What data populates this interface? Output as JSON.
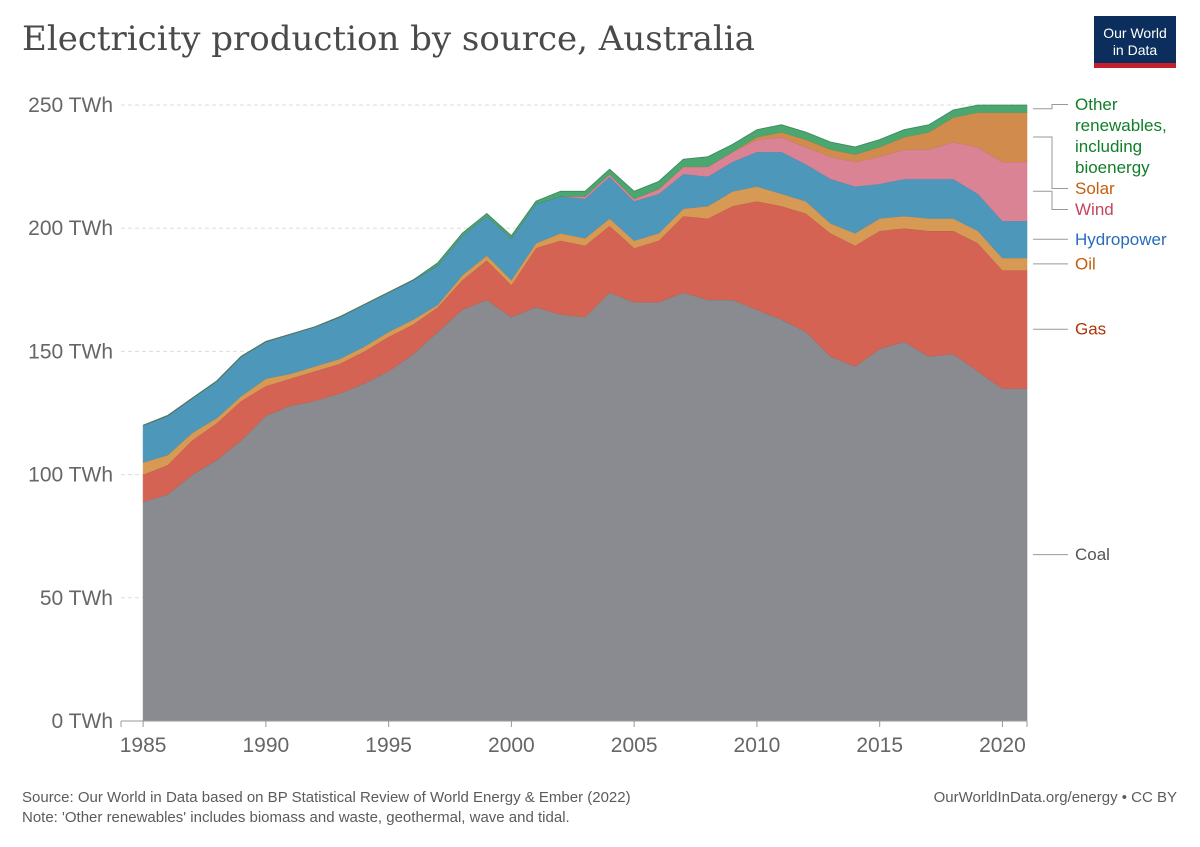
{
  "title": "Electricity production by source, Australia",
  "logo": {
    "line1": "Our World",
    "line2": "in Data",
    "bg": "#0b2e5c",
    "accent": "#c4202b"
  },
  "source_note": "Source: Our World in Data based on BP Statistical Review of World Energy & Ember (2022)",
  "note": "Note: 'Other renewables' includes biomass and waste, geothermal, wave and tidal.",
  "license": "OurWorldInData.org/energy • CC BY",
  "chart_data": {
    "type": "area",
    "stacked": true,
    "x": [
      1985,
      1986,
      1987,
      1988,
      1989,
      1990,
      1991,
      1992,
      1993,
      1994,
      1995,
      1996,
      1997,
      1998,
      1999,
      2000,
      2001,
      2002,
      2003,
      2004,
      2005,
      2006,
      2007,
      2008,
      2009,
      2010,
      2011,
      2012,
      2013,
      2014,
      2015,
      2016,
      2017,
      2018,
      2019,
      2020,
      2021
    ],
    "xlim": [
      1984.1,
      2021
    ],
    "ylim": [
      0,
      250
    ],
    "y_ticks": [
      0,
      50,
      100,
      150,
      200,
      250
    ],
    "y_tick_labels": [
      "0 TWh",
      "50 TWh",
      "100 TWh",
      "150 TWh",
      "200 TWh",
      "250 TWh"
    ],
    "x_ticks": [
      1985,
      1990,
      1995,
      2000,
      2005,
      2010,
      2015,
      2020
    ],
    "x_tick_labels": [
      "1985",
      "1990",
      "1995",
      "2000",
      "2005",
      "2010",
      "2015",
      "2020"
    ],
    "grid": true,
    "legend_placement": "right, labels at series ends",
    "series": [
      {
        "name": "Coal",
        "color": "#898b90",
        "label_color": "#555555",
        "values": [
          89,
          92,
          100,
          106,
          114,
          124,
          128,
          130,
          133,
          137,
          142,
          149,
          158,
          167,
          171,
          164,
          168,
          165,
          164,
          174,
          170,
          170,
          174,
          171,
          171,
          167,
          163,
          158,
          148,
          144,
          151,
          154,
          148,
          149,
          142,
          135,
          135
        ]
      },
      {
        "name": "Gas",
        "color": "#d46353",
        "label_color": "#b13507",
        "values": [
          11,
          12,
          14,
          15,
          16,
          12,
          11,
          12,
          12,
          13,
          14,
          12,
          10,
          12,
          16,
          13,
          24,
          30,
          29,
          27,
          22,
          25,
          31,
          33,
          38,
          44,
          46,
          48,
          50,
          49,
          48,
          46,
          51,
          50,
          52,
          48,
          48
        ]
      },
      {
        "name": "Oil",
        "color": "#d69a55",
        "label_color": "#c15f0d",
        "values": [
          5,
          4,
          3,
          2,
          2,
          3,
          2,
          2,
          2,
          2,
          2,
          2,
          1,
          2,
          2,
          2,
          2,
          3,
          3,
          3,
          3,
          3,
          3,
          5,
          6,
          6,
          5,
          5,
          4,
          5,
          5,
          5,
          5,
          5,
          5,
          5,
          5
        ]
      },
      {
        "name": "Hydropower",
        "color": "#4d97bb",
        "label_color": "#286bbb",
        "values": [
          15,
          16,
          14,
          15,
          16,
          15,
          16,
          16,
          17,
          17,
          16,
          16,
          16,
          16,
          16,
          17,
          16,
          15,
          16,
          17,
          16,
          16,
          14,
          12,
          12,
          14,
          17,
          15,
          18,
          19,
          14,
          15,
          16,
          16,
          15,
          15,
          15
        ]
      },
      {
        "name": "Wind",
        "color": "#d98394",
        "label_color": "#c6445d",
        "values": [
          0,
          0,
          0,
          0,
          0,
          0,
          0,
          0,
          0,
          0,
          0,
          0,
          0,
          0,
          0,
          0,
          0,
          0,
          1,
          1,
          1,
          2,
          3,
          4,
          4,
          5,
          6,
          7,
          9,
          10,
          11,
          12,
          12,
          15,
          19,
          24,
          24
        ]
      },
      {
        "name": "Solar",
        "color": "#d18b4c",
        "label_color": "#c15f0d",
        "values": [
          0,
          0,
          0,
          0,
          0,
          0,
          0,
          0,
          0,
          0,
          0,
          0,
          0,
          0,
          0,
          0,
          0,
          0,
          0,
          0,
          0,
          0,
          0,
          0,
          0,
          1,
          2,
          3,
          3,
          3,
          4,
          5,
          7,
          10,
          14,
          20,
          20
        ]
      },
      {
        "name": "Other renewables, including bioenergy",
        "color": "#4aa76f",
        "label_color": "#117e29",
        "label_lines": [
          "Other",
          "renewables,",
          "including",
          "bioenergy"
        ],
        "values": [
          0,
          0,
          0,
          0,
          0,
          0,
          0,
          0,
          0,
          0,
          0,
          0,
          1,
          1,
          1,
          1,
          1,
          2,
          2,
          2,
          3,
          3,
          3,
          4,
          3,
          3,
          3,
          3,
          3,
          3,
          3,
          3,
          3,
          3,
          3,
          3,
          3
        ]
      }
    ]
  }
}
